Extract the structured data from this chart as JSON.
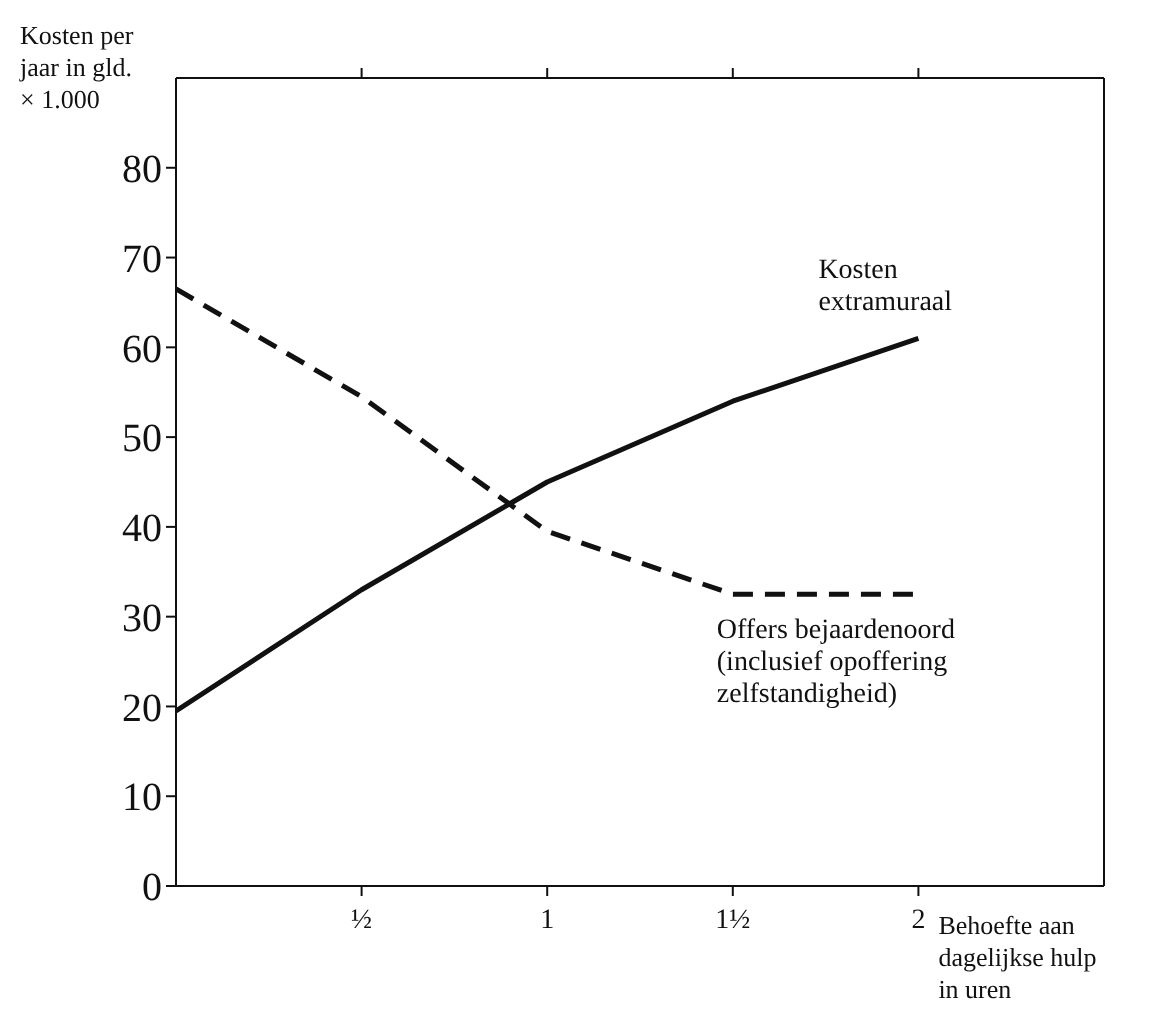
{
  "chart_data": {
    "type": "line",
    "xlabel": "Behoefte aan dagelijkse hulp in uren",
    "ylabel": "Kosten per jaar in gld. × 1.000",
    "x": [
      0,
      0.5,
      1,
      1.5,
      2
    ],
    "series": [
      {
        "name": "Kosten extramuraal",
        "color": "#111111",
        "line_style": "solid",
        "values": [
          19.5,
          33,
          45,
          54,
          61
        ]
      },
      {
        "name": "Offers bejaardenoord (inclusief opoffering zelfstandigheid)",
        "color": "#111111",
        "line_style": "dashed",
        "values": [
          66.5,
          54.5,
          39.5,
          32.5,
          32.5
        ]
      }
    ],
    "xlim": [
      0,
      2.5
    ],
    "xticks": [
      {
        "value": 0.5,
        "label": "½"
      },
      1,
      {
        "value": 1.5,
        "label": "1½"
      },
      2
    ],
    "ylim": [
      0,
      90
    ],
    "yticks": [
      0,
      10,
      20,
      30,
      40,
      50,
      60,
      70,
      80
    ],
    "marker": "none"
  }
}
